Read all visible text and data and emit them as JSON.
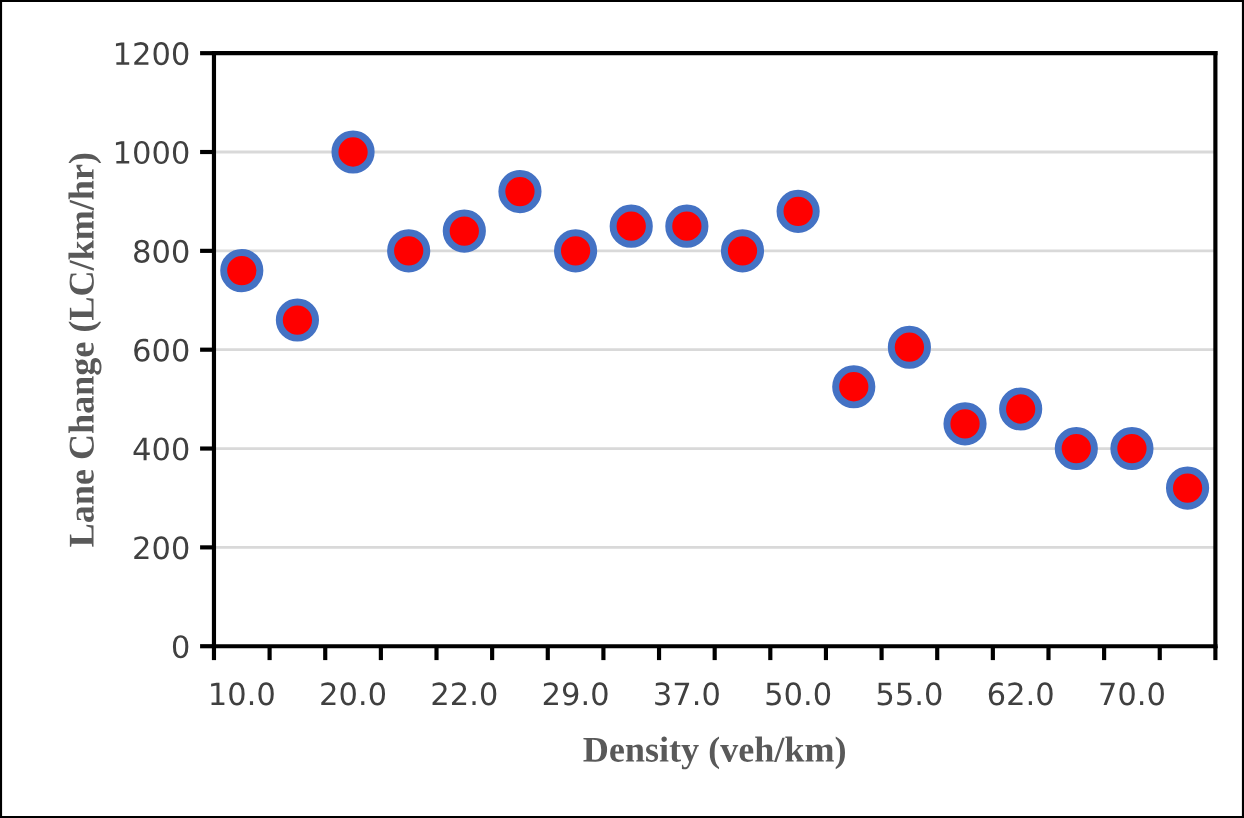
{
  "chart_data": {
    "type": "scatter",
    "xlabel": "Density (veh/km)",
    "ylabel": "Lane Change (LC/km/hr)",
    "categories": [
      "10.0",
      null,
      "20.0",
      null,
      "22.0",
      null,
      "29.0",
      null,
      "37.0",
      null,
      "50.0",
      null,
      "55.0",
      null,
      "62.0",
      null,
      "70.0",
      null
    ],
    "series": [
      {
        "color": "#ff0000",
        "values": [
          760,
          660,
          1000,
          800,
          840,
          920,
          800,
          850,
          850,
          800,
          880,
          525,
          605,
          450,
          480,
          400,
          400,
          320
        ]
      }
    ],
    "ylim": [
      0,
      1200
    ],
    "yticks": [
      0,
      200,
      400,
      600,
      800,
      1000,
      1200
    ],
    "grid": "y",
    "marker": "circle",
    "legend": false
  }
}
